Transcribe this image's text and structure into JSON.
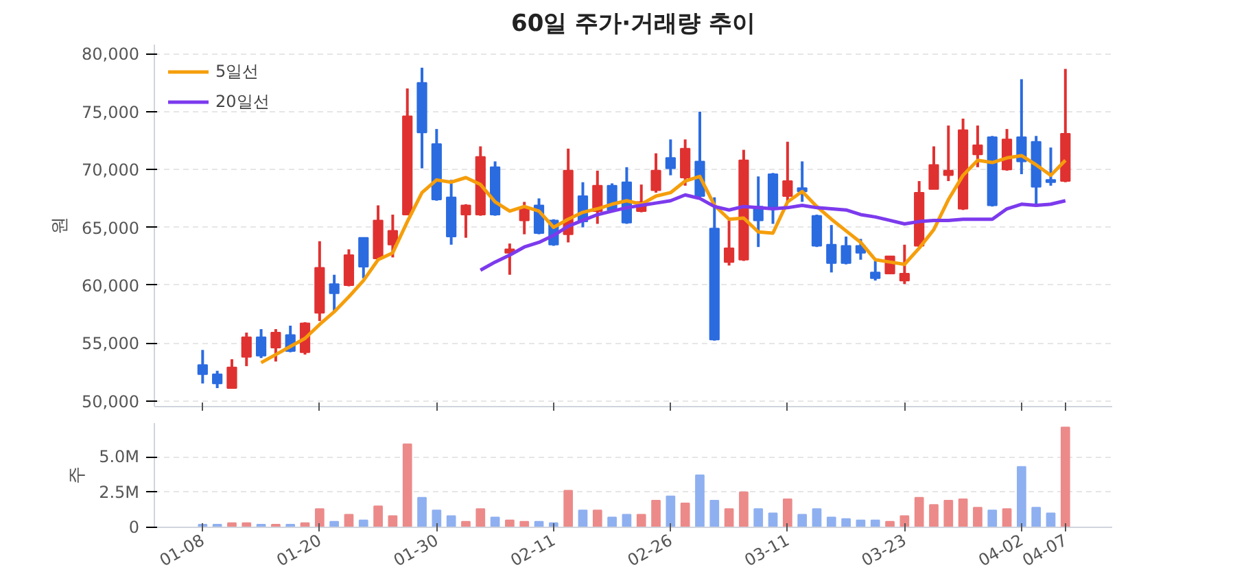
{
  "chart_data": [
    {
      "type": "candlestick",
      "title": "60일 주가·거래량 추이",
      "ylabel": "원",
      "ohlc": [
        [
          53100,
          54400,
          51500,
          52300
        ],
        [
          52300,
          52600,
          51100,
          51500
        ],
        [
          51100,
          53600,
          51100,
          52900
        ],
        [
          53800,
          55900,
          53000,
          55500
        ],
        [
          55500,
          56200,
          53700,
          53900
        ],
        [
          54600,
          56200,
          53400,
          55900
        ],
        [
          55700,
          56500,
          54200,
          54300
        ],
        [
          54200,
          56800,
          54000,
          56700
        ],
        [
          57600,
          63800,
          56900,
          61500
        ],
        [
          60100,
          60900,
          57800,
          59300
        ],
        [
          60000,
          63100,
          59900,
          62600
        ],
        [
          64100,
          64100,
          60600,
          61600
        ],
        [
          62300,
          66900,
          62300,
          65600
        ],
        [
          63500,
          66100,
          62400,
          64700
        ],
        [
          66100,
          77000,
          66100,
          74600
        ],
        [
          77500,
          78800,
          70100,
          73200
        ],
        [
          72200,
          73500,
          67300,
          67400
        ],
        [
          67600,
          69100,
          63500,
          64200
        ],
        [
          66100,
          67000,
          64100,
          66900
        ],
        [
          66100,
          72000,
          66000,
          71100
        ],
        [
          70200,
          70700,
          66000,
          66100
        ],
        [
          62800,
          63600,
          60900,
          63100
        ],
        [
          65600,
          67200,
          64400,
          66600
        ],
        [
          66900,
          67500,
          64400,
          64500
        ],
        [
          65600,
          65700,
          63400,
          63500
        ],
        [
          64400,
          71800,
          63700,
          69900
        ],
        [
          67700,
          68900,
          65000,
          65500
        ],
        [
          66400,
          69900,
          65300,
          68600
        ],
        [
          68600,
          68800,
          66400,
          66500
        ],
        [
          68900,
          70200,
          65300,
          65400
        ],
        [
          66400,
          68700,
          66300,
          67200
        ],
        [
          68200,
          71400,
          68000,
          69900
        ],
        [
          71000,
          72600,
          69500,
          70100
        ],
        [
          69300,
          72600,
          68600,
          71800
        ],
        [
          70700,
          75000,
          67600,
          67700
        ],
        [
          64900,
          67600,
          55200,
          55300
        ],
        [
          62000,
          65600,
          61700,
          63200
        ],
        [
          62200,
          71700,
          62100,
          70800
        ],
        [
          66800,
          69400,
          63300,
          65600
        ],
        [
          69600,
          69700,
          65300,
          66600
        ],
        [
          67700,
          72400,
          67200,
          69000
        ],
        [
          68400,
          70700,
          67200,
          68100
        ],
        [
          66000,
          66100,
          63300,
          63400
        ],
        [
          63500,
          65200,
          61100,
          61900
        ],
        [
          63400,
          64200,
          61800,
          61900
        ],
        [
          63400,
          64000,
          62200,
          62800
        ],
        [
          61100,
          62100,
          60400,
          60600
        ],
        [
          61000,
          62500,
          61000,
          62500
        ],
        [
          60400,
          63500,
          60100,
          61000
        ],
        [
          63400,
          69000,
          63300,
          68000
        ],
        [
          68300,
          72000,
          68300,
          70400
        ],
        [
          69500,
          73800,
          69000,
          69900
        ],
        [
          66600,
          74400,
          66500,
          73400
        ],
        [
          71300,
          73800,
          70200,
          72100
        ],
        [
          72800,
          72900,
          66800,
          66900
        ],
        [
          70000,
          73500,
          69900,
          72600
        ],
        [
          72800,
          77800,
          69600,
          70700
        ],
        [
          72400,
          72900,
          66900,
          68500
        ],
        [
          69100,
          71900,
          68600,
          68900
        ],
        [
          69000,
          78700,
          68900,
          73100
        ]
      ],
      "colors": [
        "#2b6be0",
        "#2b6be0",
        "#e03131",
        "#e03131",
        "#2b6be0",
        "#e03131",
        "#2b6be0",
        "#e03131",
        "#e03131",
        "#2b6be0",
        "#e03131",
        "#2b6be0",
        "#e03131",
        "#e03131",
        "#e03131",
        "#2b6be0",
        "#2b6be0",
        "#2b6be0",
        "#e03131",
        "#e03131",
        "#2b6be0",
        "#e03131",
        "#e03131",
        "#2b6be0",
        "#2b6be0",
        "#e03131",
        "#2b6be0",
        "#e03131",
        "#2b6be0",
        "#2b6be0",
        "#e03131",
        "#e03131",
        "#2b6be0",
        "#e03131",
        "#2b6be0",
        "#2b6be0",
        "#e03131",
        "#e03131",
        "#2b6be0",
        "#2b6be0",
        "#e03131",
        "#2b6be0",
        "#2b6be0",
        "#2b6be0",
        "#2b6be0",
        "#2b6be0",
        "#2b6be0",
        "#e03131",
        "#e03131",
        "#e03131",
        "#e03131",
        "#e03131",
        "#e03131",
        "#e03131",
        "#2b6be0",
        "#e03131",
        "#2b6be0",
        "#2b6be0",
        "#2b6be0",
        "#e03131"
      ],
      "series": [
        {
          "name": "5일선",
          "type": "line",
          "color": "#f59e0b",
          "values": [
            null,
            null,
            null,
            null,
            53300,
            54000,
            54700,
            55400,
            56600,
            57700,
            59000,
            60400,
            62200,
            62800,
            65500,
            68000,
            69100,
            68900,
            69300,
            68700,
            67200,
            66400,
            66800,
            66400,
            65000,
            65700,
            66300,
            66600,
            67000,
            67300,
            67000,
            67700,
            68000,
            69000,
            69400,
            66900,
            65700,
            65800,
            64600,
            64500,
            67200,
            68100,
            66800,
            65700,
            64700,
            63700,
            62200,
            62000,
            61800,
            63200,
            64800,
            67400,
            69500,
            70800,
            70600,
            71000,
            71200,
            70400,
            69500,
            70800
          ]
        },
        {
          "name": "20일선",
          "type": "line",
          "color": "#7c3aed",
          "values": [
            null,
            null,
            null,
            null,
            null,
            null,
            null,
            null,
            null,
            null,
            null,
            null,
            null,
            null,
            null,
            null,
            null,
            null,
            null,
            61300,
            62000,
            62600,
            63300,
            63700,
            64300,
            65100,
            65600,
            66100,
            66400,
            66700,
            66900,
            67100,
            67300,
            67800,
            67500,
            66800,
            66500,
            66800,
            66700,
            66600,
            66700,
            66900,
            66700,
            66600,
            66500,
            66100,
            65900,
            65600,
            65300,
            65500,
            65600,
            65600,
            65700,
            65700,
            65700,
            66600,
            67000,
            66900,
            67000,
            67300
          ]
        }
      ],
      "ylim": [
        49500,
        80800
      ],
      "yticks": [
        {
          "value": 50000,
          "label": "50,000"
        },
        {
          "value": 55000,
          "label": "55,000"
        },
        {
          "value": 60000,
          "label": "60,000"
        },
        {
          "value": 65000,
          "label": "65,000"
        },
        {
          "value": 70000,
          "label": "70,000"
        },
        {
          "value": 75000,
          "label": "75,000"
        },
        {
          "value": 80000,
          "label": "80,000"
        }
      ],
      "grid": "y",
      "legend": "top left",
      "tick_labels": "y"
    },
    {
      "type": "bar",
      "ylabel": "주",
      "categories": [
        "01-08",
        null,
        null,
        null,
        null,
        null,
        null,
        null,
        "01-20",
        null,
        null,
        null,
        null,
        null,
        null,
        null,
        "01-30",
        null,
        null,
        null,
        null,
        null,
        null,
        null,
        "02-11",
        null,
        null,
        null,
        null,
        null,
        null,
        null,
        "02-26",
        null,
        null,
        null,
        null,
        null,
        null,
        null,
        "03-11",
        null,
        null,
        null,
        null,
        null,
        null,
        null,
        "03-23",
        null,
        null,
        null,
        null,
        null,
        null,
        null,
        "04-02",
        null,
        null,
        "04-07"
      ],
      "values": [
        200000,
        200000,
        300000,
        300000,
        200000,
        200000,
        200000,
        300000,
        1300000,
        400000,
        900000,
        500000,
        1500000,
        800000,
        5900000,
        2100000,
        1200000,
        800000,
        400000,
        1300000,
        700000,
        500000,
        400000,
        400000,
        300000,
        2600000,
        1200000,
        1200000,
        700000,
        900000,
        900000,
        1900000,
        2200000,
        1700000,
        3700000,
        1900000,
        1300000,
        2500000,
        1300000,
        1000000,
        2000000,
        900000,
        1300000,
        700000,
        600000,
        500000,
        500000,
        400000,
        800000,
        2100000,
        1600000,
        1900000,
        2000000,
        1400000,
        1200000,
        1300000,
        4300000,
        1400000,
        1000000,
        7100000
      ],
      "colors": [
        "#8fb0f0",
        "#8fb0f0",
        "#ec8a8a",
        "#ec8a8a",
        "#8fb0f0",
        "#ec8a8a",
        "#8fb0f0",
        "#ec8a8a",
        "#ec8a8a",
        "#8fb0f0",
        "#ec8a8a",
        "#8fb0f0",
        "#ec8a8a",
        "#ec8a8a",
        "#ec8a8a",
        "#8fb0f0",
        "#8fb0f0",
        "#8fb0f0",
        "#ec8a8a",
        "#ec8a8a",
        "#8fb0f0",
        "#ec8a8a",
        "#ec8a8a",
        "#8fb0f0",
        "#8fb0f0",
        "#ec8a8a",
        "#8fb0f0",
        "#ec8a8a",
        "#8fb0f0",
        "#8fb0f0",
        "#ec8a8a",
        "#ec8a8a",
        "#8fb0f0",
        "#ec8a8a",
        "#8fb0f0",
        "#8fb0f0",
        "#ec8a8a",
        "#ec8a8a",
        "#8fb0f0",
        "#8fb0f0",
        "#ec8a8a",
        "#8fb0f0",
        "#8fb0f0",
        "#8fb0f0",
        "#8fb0f0",
        "#8fb0f0",
        "#8fb0f0",
        "#ec8a8a",
        "#ec8a8a",
        "#ec8a8a",
        "#ec8a8a",
        "#ec8a8a",
        "#ec8a8a",
        "#ec8a8a",
        "#8fb0f0",
        "#ec8a8a",
        "#8fb0f0",
        "#8fb0f0",
        "#8fb0f0",
        "#ec8a8a"
      ],
      "ylim": [
        0,
        7400000
      ],
      "yticks": [
        0,
        {
          "value": 2500000,
          "label": "2.5M"
        },
        {
          "value": 5000000,
          "label": "5.0M"
        }
      ],
      "grid": "y"
    }
  ]
}
